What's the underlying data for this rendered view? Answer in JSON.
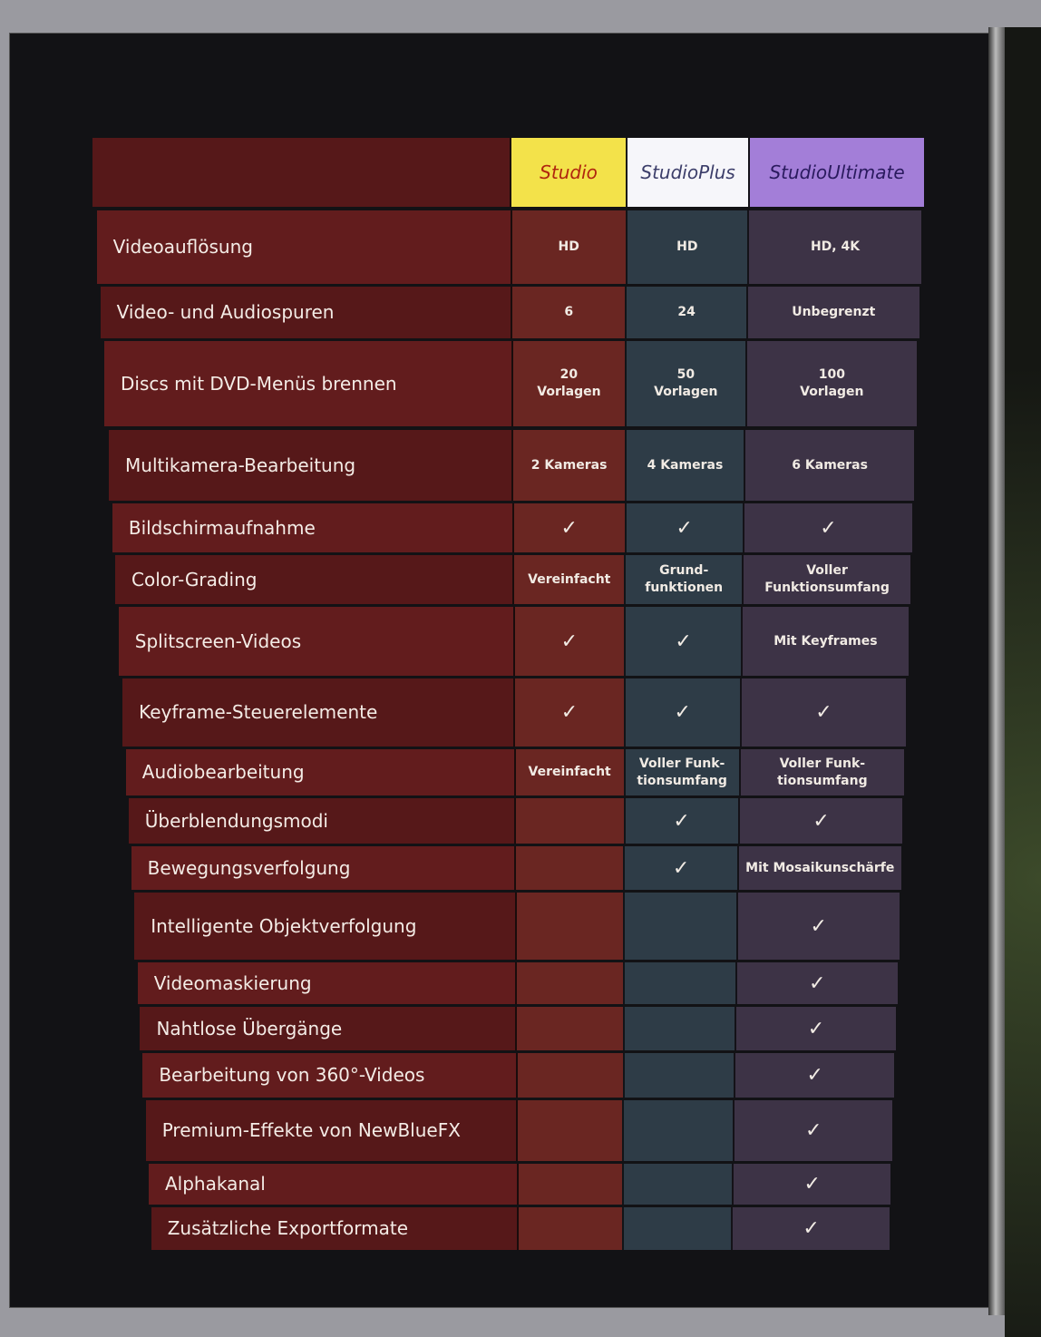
{
  "columns": [
    "Studio",
    "Studio Plus",
    "Studio Ultimate"
  ],
  "column_lines": [
    [
      "Studio"
    ],
    [
      "Studio",
      "Plus"
    ],
    [
      "Studio",
      "Ultimate"
    ]
  ],
  "colors": {
    "studio": "#f3e24a",
    "studio_plus": "#f6f6fa",
    "studio_ultimate": "#a37ed8",
    "feature_bg": "#621c1d"
  },
  "check_icon": "✓",
  "rows": [
    {
      "feature": "Videoauflösung",
      "values": [
        "HD",
        "HD",
        "HD, 4K"
      ]
    },
    {
      "feature": "Video- und Audiospuren",
      "values": [
        "6",
        "24",
        "Unbegrenzt"
      ]
    },
    {
      "feature": "Discs mit DVD-Menüs brennen",
      "values": [
        "20\nVorlagen",
        "50\nVorlagen",
        "100\nVorlagen"
      ]
    },
    {
      "feature": "Multikamera-Bearbeitung",
      "values": [
        "2 Kameras",
        "4 Kameras",
        "6 Kameras"
      ]
    },
    {
      "feature": "Bildschirmaufnahme",
      "values": [
        "check",
        "check",
        "check"
      ]
    },
    {
      "feature": "Color-Grading",
      "values": [
        "Vereinfacht",
        "Grund-\nfunktionen",
        "Voller\nFunktionsumfang"
      ]
    },
    {
      "feature": "Splitscreen-Videos",
      "values": [
        "check",
        "check",
        "Mit Keyframes"
      ]
    },
    {
      "feature": "Keyframe-Steuerelemente",
      "values": [
        "check",
        "check",
        "check"
      ]
    },
    {
      "feature": "Audiobearbeitung",
      "values": [
        "Vereinfacht",
        "Voller Funk-\ntionsumfang",
        "Voller Funk-\ntionsumfang"
      ]
    },
    {
      "feature": "Überblendungsmodi",
      "values": [
        "",
        "check",
        "check"
      ]
    },
    {
      "feature": "Bewegungsverfolgung",
      "values": [
        "",
        "check",
        "Mit Mosaikunschärfe"
      ]
    },
    {
      "feature": "Intelligente Objektverfolgung",
      "values": [
        "",
        "",
        "check"
      ]
    },
    {
      "feature": "Videomaskierung",
      "values": [
        "",
        "",
        "check"
      ]
    },
    {
      "feature": "Nahtlose Übergänge",
      "values": [
        "",
        "",
        "check"
      ]
    },
    {
      "feature": "Bearbeitung von 360°-Videos",
      "values": [
        "",
        "",
        "check"
      ]
    },
    {
      "feature": "Premium-Effekte von NewBlueFX",
      "values": [
        "",
        "",
        "check"
      ]
    },
    {
      "feature": "Alphakanal",
      "values": [
        "",
        "",
        "check"
      ]
    },
    {
      "feature": "Zusätzliche Exportformate",
      "values": [
        "",
        "",
        "check"
      ]
    }
  ]
}
